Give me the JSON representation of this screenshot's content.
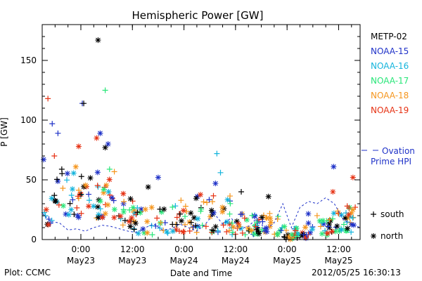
{
  "footer": {
    "plot_label": "Plot: CCMC",
    "timestamp": "2012/05/25 16:30:13"
  },
  "chart_data": {
    "type": "scatter",
    "title": "Hemispheric Power [GW]",
    "xlabel": "Date and Time",
    "ylabel": "P [GW]",
    "ylim": [
      0,
      180
    ],
    "yticks": [
      0,
      50,
      100,
      150
    ],
    "xlim": [
      "2012-05-22T15:00",
      "2012-05-25T17:00"
    ],
    "xticks": [
      {
        "t": "2012-05-23T00:00",
        "line1": "0:00",
        "line2": "May23"
      },
      {
        "t": "2012-05-23T12:00",
        "line1": "12:00",
        "line2": "May23"
      },
      {
        "t": "2012-05-24T00:00",
        "line1": "0:00",
        "line2": "May24"
      },
      {
        "t": "2012-05-24T12:00",
        "line1": "12:00",
        "line2": "May24"
      },
      {
        "t": "2012-05-25T00:00",
        "line1": "0:00",
        "line2": "May25"
      },
      {
        "t": "2012-05-25T12:00",
        "line1": "12:00",
        "line2": "May25"
      }
    ],
    "grid": false,
    "legend_position": "right",
    "satellites": [
      {
        "name": "METP-02",
        "color": "#000000"
      },
      {
        "name": "NOAA-15",
        "color": "#1f32c8"
      },
      {
        "name": "NOAA-16",
        "color": "#14b4dc"
      },
      {
        "name": "NOAA-17",
        "color": "#28e678"
      },
      {
        "name": "NOAA-18",
        "color": "#f5961e"
      },
      {
        "name": "NOAA-19",
        "color": "#e63214"
      }
    ],
    "marker_legend": [
      {
        "symbol": "+",
        "label": "south"
      },
      {
        "symbol": "*",
        "label": "north"
      }
    ],
    "ovation_legend": {
      "line1": "Ovation",
      "line2": "Prime HPI",
      "color": "#1f32c8"
    },
    "highlights": [
      {
        "t": "2012-05-23T04:00",
        "v": 167,
        "sat": "METP-02",
        "hemi": "north"
      },
      {
        "t": "2012-05-23T05:40",
        "v": 125,
        "sat": "NOAA-17",
        "hemi": "south"
      },
      {
        "t": "2012-05-22T16:20",
        "v": 118,
        "sat": "NOAA-19",
        "hemi": "south"
      },
      {
        "t": "2012-05-23T00:20",
        "v": 114,
        "sat": "NOAA-15",
        "hemi": "south"
      },
      {
        "t": "2012-05-23T00:40",
        "v": 114,
        "sat": "METP-02",
        "hemi": "south"
      },
      {
        "t": "2012-05-22T17:20",
        "v": 97,
        "sat": "NOAA-15",
        "hemi": "south"
      },
      {
        "t": "2012-05-22T18:40",
        "v": 89,
        "sat": "NOAA-15",
        "hemi": "south"
      },
      {
        "t": "2012-05-23T04:30",
        "v": 89,
        "sat": "NOAA-15",
        "hemi": "north"
      },
      {
        "t": "2012-05-23T03:40",
        "v": 85,
        "sat": "NOAA-19",
        "hemi": "north"
      },
      {
        "t": "2012-05-23T06:20",
        "v": 80,
        "sat": "NOAA-15",
        "hemi": "north"
      },
      {
        "t": "2012-05-22T23:30",
        "v": 78,
        "sat": "NOAA-19",
        "hemi": "north"
      },
      {
        "t": "2012-05-23T05:40",
        "v": 77,
        "sat": "METP-02",
        "hemi": "north"
      },
      {
        "t": "2012-05-24T07:40",
        "v": 72,
        "sat": "NOAA-16",
        "hemi": "south"
      },
      {
        "t": "2012-05-22T17:50",
        "v": 70,
        "sat": "NOAA-19",
        "hemi": "south"
      },
      {
        "t": "2012-05-22T15:20",
        "v": 67,
        "sat": "NOAA-15",
        "hemi": "north"
      },
      {
        "t": "2012-05-25T10:50",
        "v": 61,
        "sat": "NOAA-15",
        "hemi": "north"
      },
      {
        "t": "2012-05-24T08:30",
        "v": 56,
        "sat": "NOAA-16",
        "hemi": "south"
      },
      {
        "t": "2012-05-25T15:20",
        "v": 52,
        "sat": "NOAA-19",
        "hemi": "north"
      },
      {
        "t": "2012-05-23T18:00",
        "v": 52,
        "sat": "NOAA-15",
        "hemi": "north"
      },
      {
        "t": "2012-05-24T07:20",
        "v": 47,
        "sat": "NOAA-15",
        "hemi": "north"
      },
      {
        "t": "2012-05-23T15:40",
        "v": 44,
        "sat": "METP-02",
        "hemi": "north"
      },
      {
        "t": "2012-05-25T10:40",
        "v": 40,
        "sat": "NOAA-19",
        "hemi": "north"
      },
      {
        "t": "2012-05-24T13:20",
        "v": 40,
        "sat": "METP-02",
        "hemi": "south"
      },
      {
        "t": "2012-05-24T19:40",
        "v": 36,
        "sat": "METP-02",
        "hemi": "north"
      },
      {
        "t": "2012-05-25T14:00",
        "v": 28,
        "sat": "NOAA-19",
        "hemi": "south"
      },
      {
        "t": "2012-05-25T15:20",
        "v": 25,
        "sat": "NOAA-18",
        "hemi": "north"
      }
    ],
    "ovation_hpi": [
      [
        "2012-05-22T15:00",
        22
      ],
      [
        "2012-05-22T17:00",
        15
      ],
      [
        "2012-05-22T19:00",
        14
      ],
      [
        "2012-05-22T21:00",
        8
      ],
      [
        "2012-05-22T23:00",
        9
      ],
      [
        "2012-05-23T01:00",
        7
      ],
      [
        "2012-05-23T03:00",
        10
      ],
      [
        "2012-05-23T05:00",
        12
      ],
      [
        "2012-05-23T07:00",
        11
      ],
      [
        "2012-05-23T09:00",
        9
      ],
      [
        "2012-05-23T11:00",
        7
      ],
      [
        "2012-05-23T13:00",
        6
      ],
      [
        "2012-05-23T15:00",
        10
      ],
      [
        "2012-05-23T17:00",
        13
      ],
      [
        "2012-05-23T19:00",
        8
      ],
      [
        "2012-05-23T21:00",
        9
      ],
      [
        "2012-05-23T23:00",
        13
      ],
      [
        "2012-05-24T01:00",
        10
      ],
      [
        "2012-05-24T03:00",
        7
      ],
      [
        "2012-05-24T05:00",
        13
      ],
      [
        "2012-05-24T07:00",
        22
      ],
      [
        "2012-05-24T09:00",
        13
      ],
      [
        "2012-05-24T11:00",
        18
      ],
      [
        "2012-05-24T13:00",
        9
      ],
      [
        "2012-05-24T15:00",
        11
      ],
      [
        "2012-05-24T17:00",
        18
      ],
      [
        "2012-05-24T19:00",
        8
      ],
      [
        "2012-05-24T21:00",
        14
      ],
      [
        "2012-05-24T23:00",
        30
      ],
      [
        "2012-05-25T01:00",
        10
      ],
      [
        "2012-05-25T03:00",
        27
      ],
      [
        "2012-05-25T05:00",
        32
      ],
      [
        "2012-05-25T07:00",
        30
      ],
      [
        "2012-05-25T09:00",
        35
      ],
      [
        "2012-05-25T11:00",
        30
      ],
      [
        "2012-05-25T13:00",
        17
      ],
      [
        "2012-05-25T15:00",
        13
      ],
      [
        "2012-05-25T17:00",
        10
      ]
    ],
    "bulk_description": "many +/* points mostly 0-50 GW, elevated (20-60) May22 18:00-May23 09:00, low (3-20) May23 12:00-May25 10:00"
  }
}
